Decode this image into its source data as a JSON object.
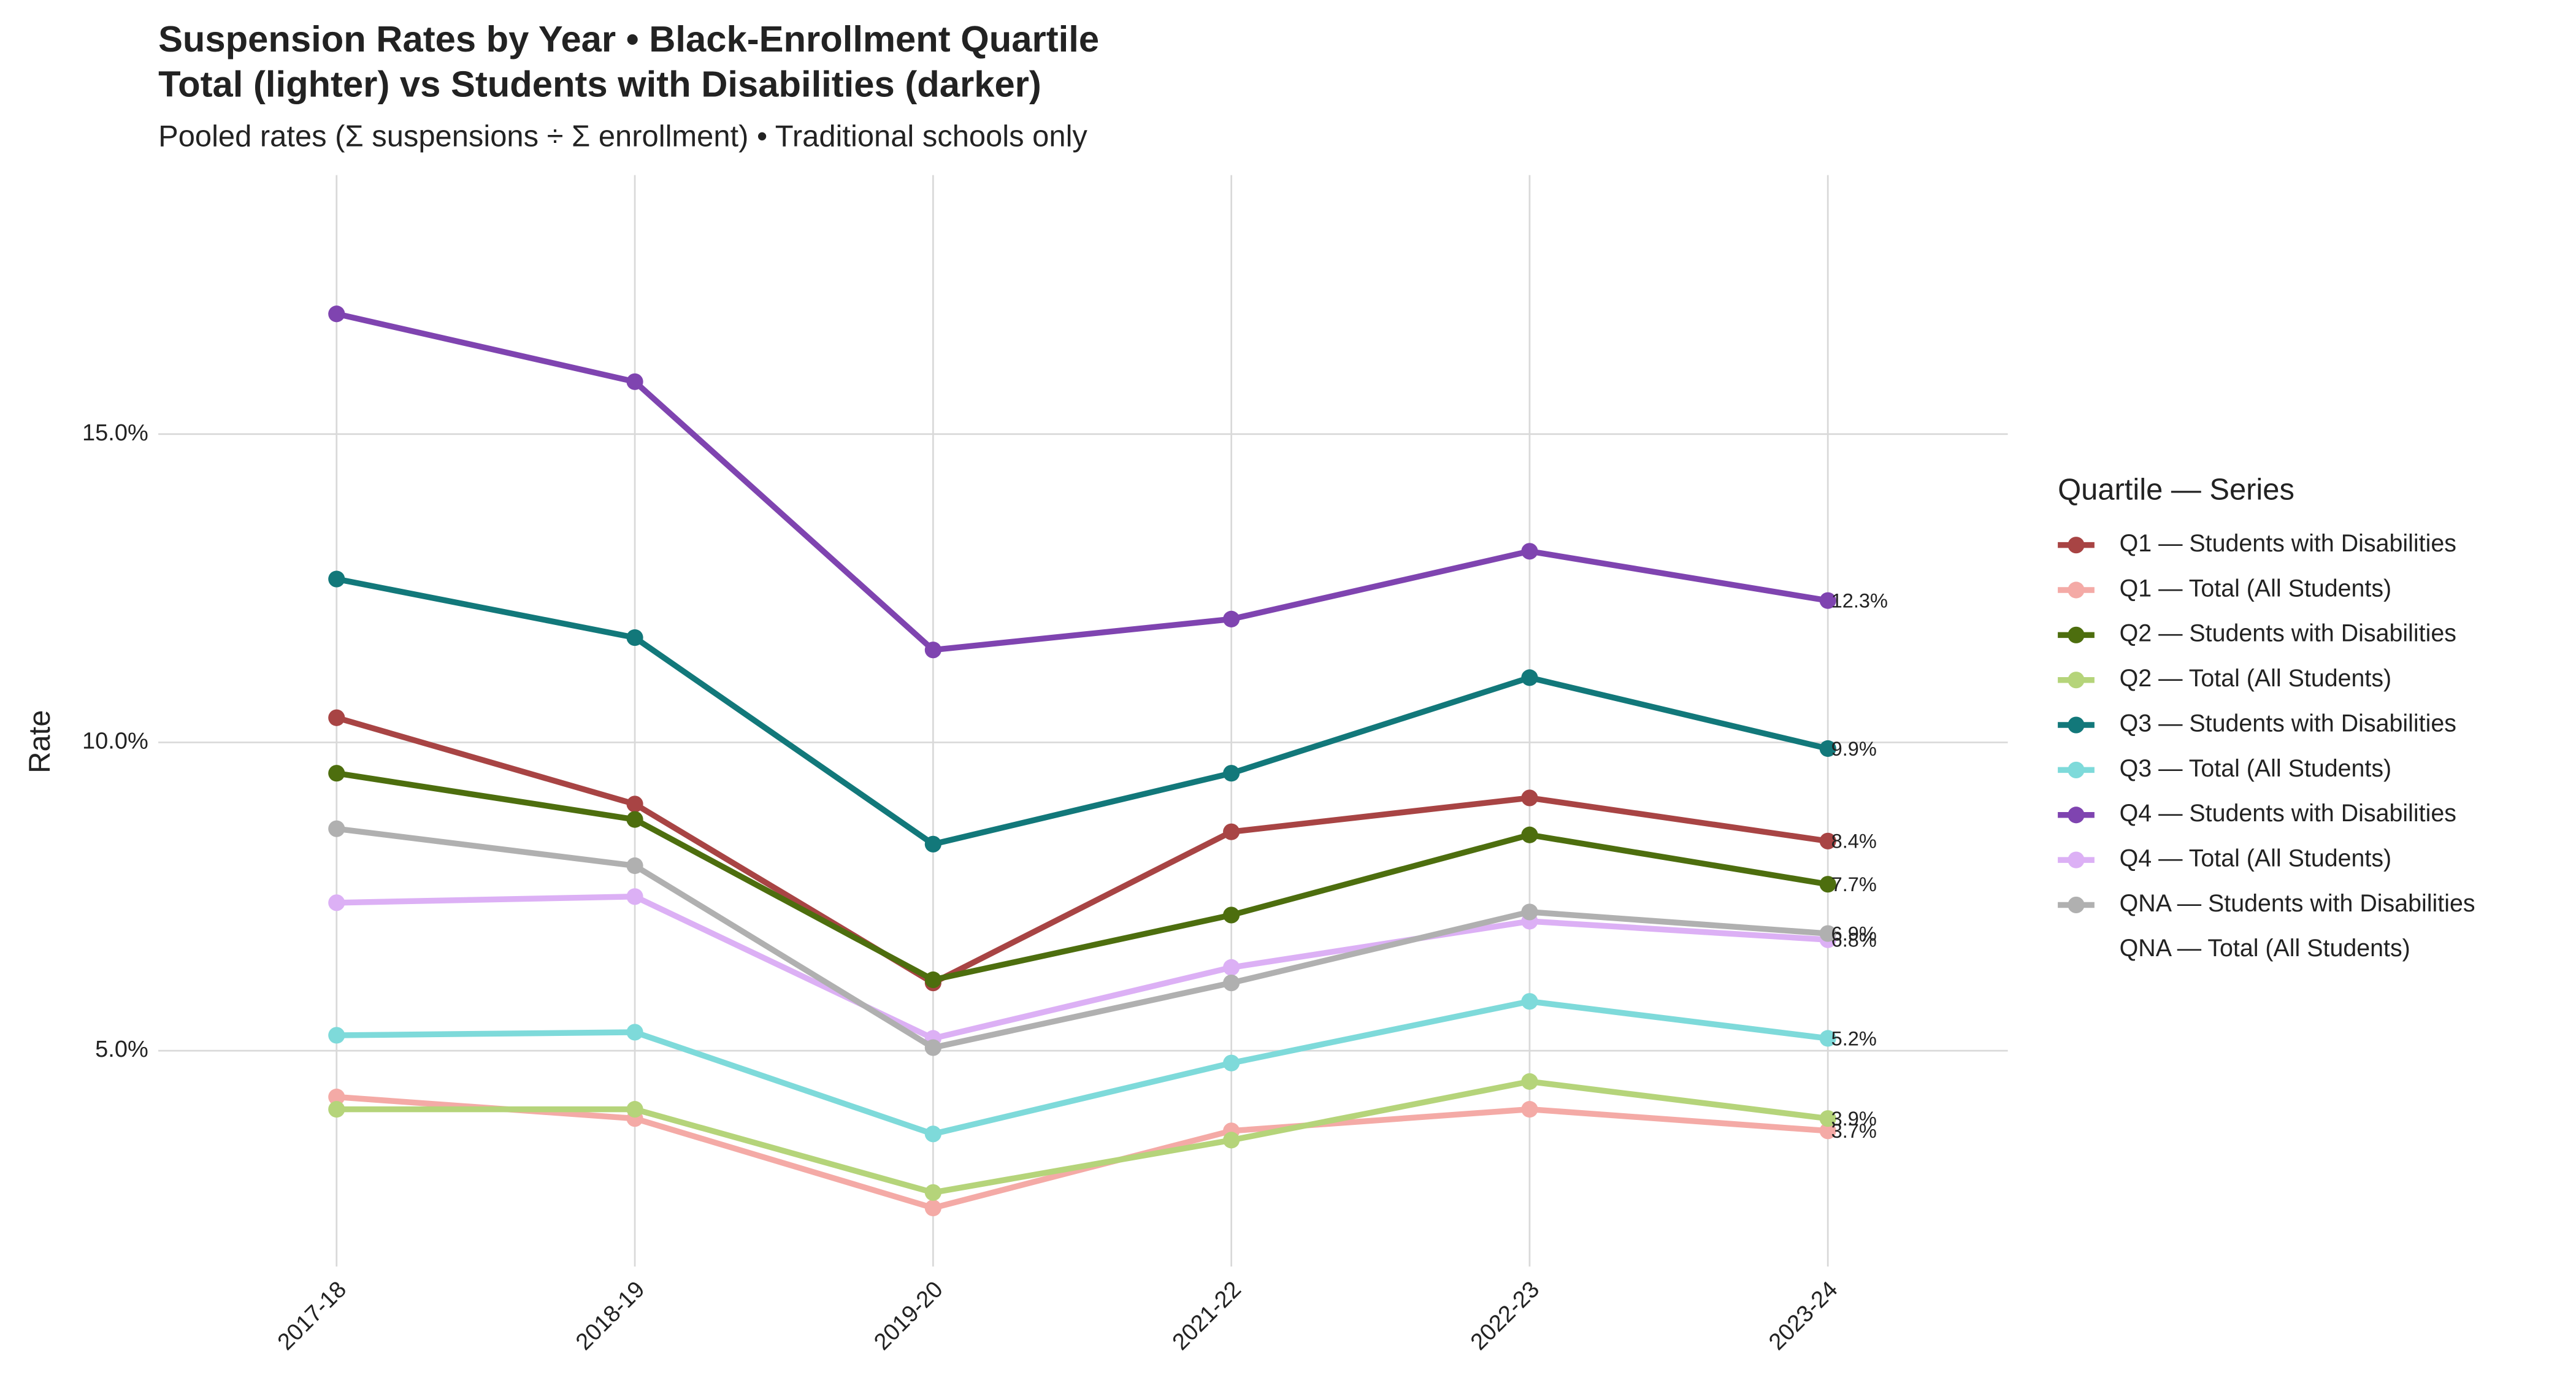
{
  "chart_data": {
    "type": "line",
    "title": "Suspension Rates by Year • Black-Enrollment Quartile",
    "title_line2": "Total (lighter) vs Students with Disabilities (darker)",
    "subtitle": "Pooled rates (Σ suspensions ÷ Σ enrollment) • Traditional schools only",
    "y_label": "Rate",
    "legend_title": "Quartile — Series",
    "legend_position": "right",
    "grid": true,
    "categories": [
      "2017-18",
      "2018-19",
      "2019-20",
      "2021-22",
      "2022-23",
      "2023-24"
    ],
    "ylim": [
      1.5,
      19.2
    ],
    "yticks": [
      {
        "value": 5,
        "label": "5.0%"
      },
      {
        "value": 10,
        "label": "10.0%"
      },
      {
        "value": 15,
        "label": "15.0%"
      }
    ],
    "series": [
      {
        "name": "Q1 — Students with Disabilities",
        "color": "#a84444",
        "values": [
          10.4,
          9.0,
          6.1,
          8.55,
          9.1,
          8.4
        ],
        "value_labels": [
          null,
          null,
          null,
          null,
          null,
          "8.4%"
        ]
      },
      {
        "name": "Q1 — Total (All Students)",
        "color": "#f4aaa6",
        "values": [
          4.25,
          3.9,
          2.45,
          3.7,
          4.05,
          3.7
        ],
        "value_labels": [
          null,
          null,
          null,
          null,
          null,
          "3.7%"
        ]
      },
      {
        "name": "Q2 — Students with Disabilities",
        "color": "#4d6e0e",
        "values": [
          9.5,
          8.75,
          6.15,
          7.2,
          8.5,
          7.7
        ],
        "value_labels": [
          null,
          null,
          null,
          null,
          null,
          "7.7%"
        ]
      },
      {
        "name": "Q2 — Total (All Students)",
        "color": "#b5d47a",
        "values": [
          4.05,
          4.05,
          2.7,
          3.55,
          4.5,
          3.9
        ],
        "value_labels": [
          null,
          null,
          null,
          null,
          null,
          "3.9%"
        ]
      },
      {
        "name": "Q3 — Students with Disabilities",
        "color": "#12787a",
        "values": [
          12.65,
          11.7,
          8.35,
          9.5,
          11.05,
          9.9
        ],
        "value_labels": [
          null,
          null,
          null,
          null,
          null,
          "9.9%"
        ]
      },
      {
        "name": "Q3 — Total (All Students)",
        "color": "#7edada",
        "values": [
          5.25,
          5.3,
          3.65,
          4.8,
          5.8,
          5.2
        ],
        "value_labels": [
          null,
          null,
          null,
          null,
          null,
          "5.2%"
        ]
      },
      {
        "name": "Q4 — Students with Disabilities",
        "color": "#7f44b0",
        "values": [
          16.95,
          15.85,
          11.5,
          12.0,
          13.1,
          12.3
        ],
        "value_labels": [
          null,
          null,
          null,
          null,
          null,
          "12.3%"
        ]
      },
      {
        "name": "Q4 — Total (All Students)",
        "color": "#dcb0f5",
        "values": [
          7.4,
          7.5,
          5.2,
          6.35,
          7.1,
          6.8
        ],
        "value_labels": [
          null,
          null,
          null,
          null,
          null,
          "6.8%"
        ]
      },
      {
        "name": "QNA — Students with Disabilities",
        "color": "#b0b0b0",
        "values": [
          8.6,
          8.0,
          5.05,
          6.1,
          7.25,
          6.9
        ],
        "value_labels": [
          null,
          null,
          null,
          null,
          null,
          "6.9%"
        ]
      },
      {
        "name": "QNA — Total (All Students)",
        "values": [
          null,
          null,
          null,
          null,
          null,
          null
        ]
      }
    ]
  }
}
